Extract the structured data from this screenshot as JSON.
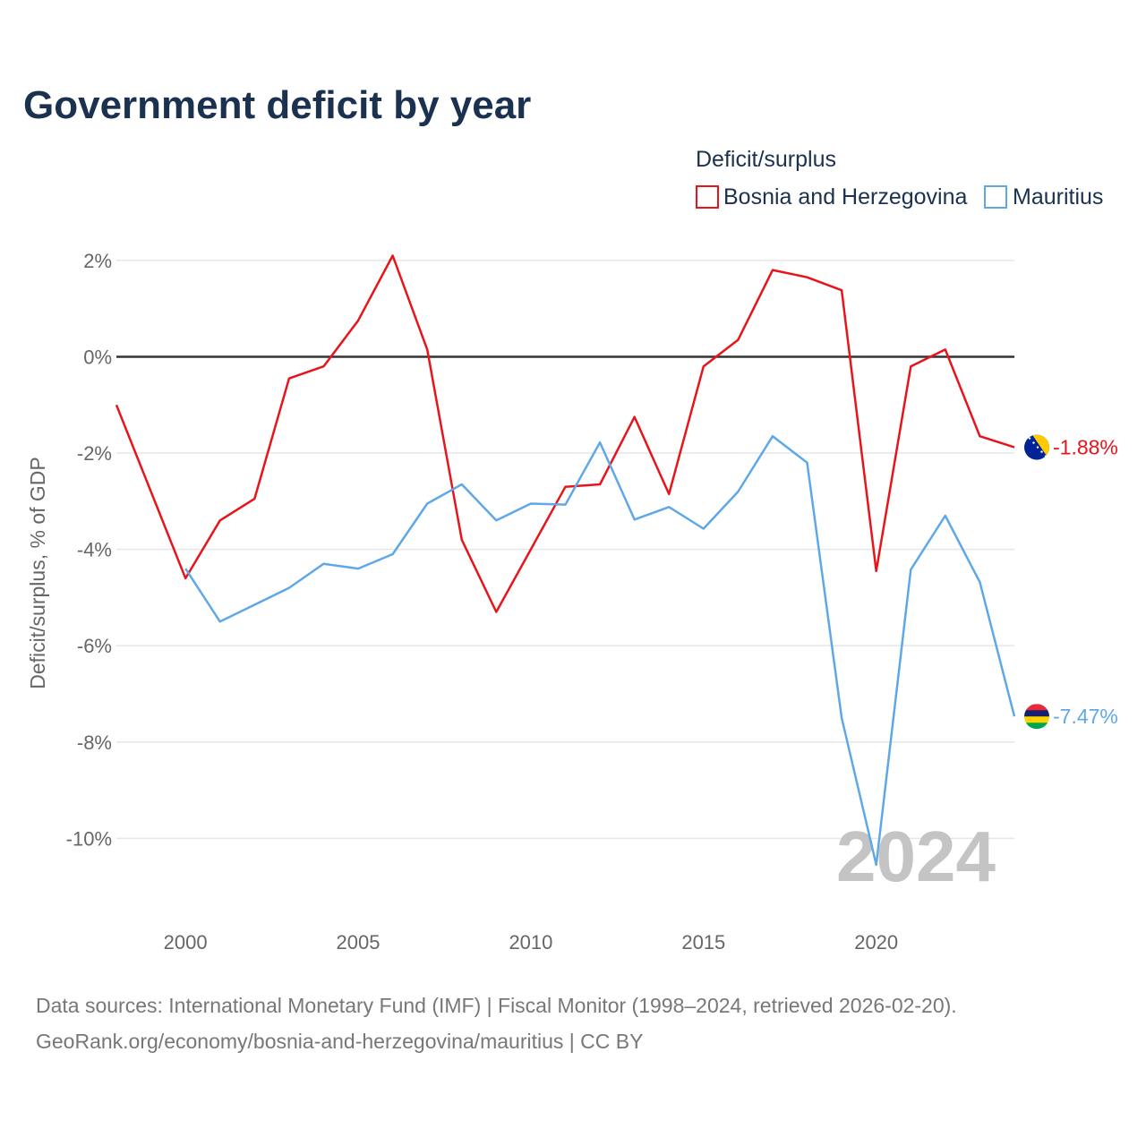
{
  "chart_data": {
    "type": "line",
    "title": "Government deficit by year",
    "legend_title": "Deficit/surplus",
    "legend_position": "top-right",
    "ylabel": "Deficit/surplus, % of GDP",
    "xlabel": "",
    "xlim": [
      1998,
      2024
    ],
    "ylim": [
      -11.5,
      2.5
    ],
    "x_ticks": [
      2000,
      2005,
      2010,
      2015,
      2020
    ],
    "x_tick_labels": [
      "2000",
      "2005",
      "2010",
      "2015",
      "2020"
    ],
    "y_ticks": [
      2,
      0,
      -2,
      -4,
      -6,
      -8,
      -10
    ],
    "y_tick_labels": [
      "2%",
      "0%",
      "-2%",
      "-4%",
      "-6%",
      "-8%",
      "-10%"
    ],
    "zero_line": true,
    "current_year_label": "2024",
    "series": [
      {
        "name": "Bosnia and Herzegovina",
        "color": "#e8141c",
        "end_label": "-1.88%",
        "flag": "bosnia-flag-icon",
        "points": [
          [
            1998,
            -1.0
          ],
          [
            2000,
            -4.6
          ],
          [
            2001,
            -3.4
          ],
          [
            2002,
            -2.95
          ],
          [
            2003,
            -0.45
          ],
          [
            2004,
            -0.2
          ],
          [
            2005,
            0.75
          ],
          [
            2006,
            2.1
          ],
          [
            2007,
            0.15
          ],
          [
            2008,
            -3.8
          ],
          [
            2009,
            -5.3
          ],
          [
            2010,
            -4.0
          ],
          [
            2011,
            -2.7
          ],
          [
            2012,
            -2.65
          ],
          [
            2013,
            -1.25
          ],
          [
            2014,
            -2.85
          ],
          [
            2015,
            -0.2
          ],
          [
            2016,
            0.35
          ],
          [
            2017,
            1.8
          ],
          [
            2018,
            1.65
          ],
          [
            2019,
            1.38
          ],
          [
            2020,
            -4.45
          ],
          [
            2021,
            -0.2
          ],
          [
            2022,
            0.15
          ],
          [
            2023,
            -1.65
          ],
          [
            2024,
            -1.88
          ]
        ]
      },
      {
        "name": "Mauritius",
        "color": "#5fa8e8",
        "end_label": "-7.47%",
        "flag": "mauritius-flag-icon",
        "points": [
          [
            2000,
            -4.4
          ],
          [
            2001,
            -5.5
          ],
          [
            2002,
            -5.15
          ],
          [
            2003,
            -4.8
          ],
          [
            2004,
            -4.3
          ],
          [
            2005,
            -4.4
          ],
          [
            2006,
            -4.1
          ],
          [
            2007,
            -3.05
          ],
          [
            2008,
            -2.65
          ],
          [
            2009,
            -3.4
          ],
          [
            2010,
            -3.05
          ],
          [
            2011,
            -3.07
          ],
          [
            2012,
            -1.78
          ],
          [
            2013,
            -3.38
          ],
          [
            2014,
            -3.12
          ],
          [
            2015,
            -3.57
          ],
          [
            2016,
            -2.8
          ],
          [
            2017,
            -1.65
          ],
          [
            2018,
            -2.2
          ],
          [
            2019,
            -7.5
          ],
          [
            2020,
            -10.55
          ],
          [
            2021,
            -4.42
          ],
          [
            2022,
            -3.3
          ],
          [
            2023,
            -4.68
          ],
          [
            2024,
            -7.47
          ]
        ]
      }
    ]
  },
  "footer": {
    "source_line": "Data sources: International Monetary Fund (IMF) | Fiscal Monitor (1998–2024, retrieved 2026-02-20).",
    "credit_line": "GeoRank.org/economy/bosnia-and-herzegovina/mauritius | CC BY"
  },
  "colors": {
    "title": "#1b3150",
    "grid": "#e6e6e6",
    "zero_line": "#333333",
    "tick_text": "#666666",
    "watermark": "#c4c4c4"
  }
}
